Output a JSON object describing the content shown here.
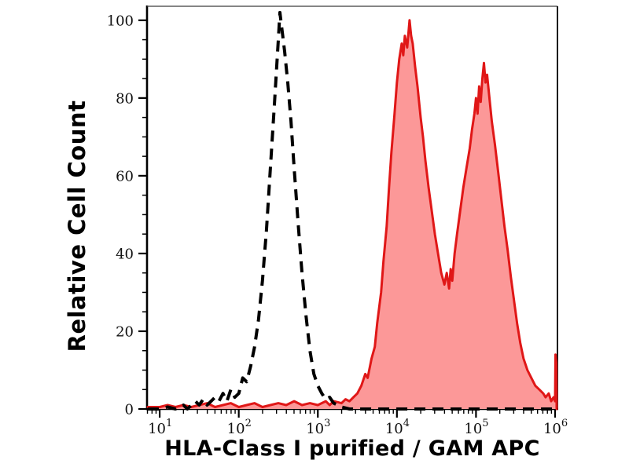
{
  "chart_data": {
    "type": "area",
    "title": "",
    "xlabel": "HLA-Class I purified / GAM APC",
    "ylabel": "Relative Cell Count",
    "x_scale": "log10",
    "x_range_log": [
      0.84,
      6.03
    ],
    "ylim": [
      0,
      103.6
    ],
    "y_ticks": [
      0,
      20,
      40,
      60,
      80,
      100
    ],
    "y_minor_step": 5,
    "x_decades": [
      1,
      2,
      3,
      4,
      5,
      6
    ],
    "grid": false,
    "legend": "none",
    "colors": {
      "sample_line": "#e01717",
      "sample_fill": "#fc9898",
      "control_line": "#000000",
      "axis": "#000000",
      "background": "#ffffff"
    },
    "series": [
      {
        "name": "isotype-control",
        "style": "dashed",
        "peak": {
          "x_log": 2.52,
          "y": 102
        },
        "points": [
          [
            0.85,
            0
          ],
          [
            1.0,
            0
          ],
          [
            1.1,
            0.5
          ],
          [
            1.2,
            0
          ],
          [
            1.3,
            1
          ],
          [
            1.35,
            0
          ],
          [
            1.45,
            2
          ],
          [
            1.5,
            1
          ],
          [
            1.55,
            2.5
          ],
          [
            1.6,
            1
          ],
          [
            1.65,
            2
          ],
          [
            1.7,
            3
          ],
          [
            1.75,
            2
          ],
          [
            1.8,
            4
          ],
          [
            1.85,
            2
          ],
          [
            1.9,
            5
          ],
          [
            1.95,
            3
          ],
          [
            2.0,
            4
          ],
          [
            2.05,
            8
          ],
          [
            2.1,
            7
          ],
          [
            2.15,
            11
          ],
          [
            2.2,
            16
          ],
          [
            2.25,
            23
          ],
          [
            2.3,
            33
          ],
          [
            2.35,
            46
          ],
          [
            2.4,
            62
          ],
          [
            2.45,
            78
          ],
          [
            2.48,
            88
          ],
          [
            2.5,
            95
          ],
          [
            2.52,
            102
          ],
          [
            2.55,
            97
          ],
          [
            2.58,
            92
          ],
          [
            2.62,
            84
          ],
          [
            2.66,
            74
          ],
          [
            2.7,
            62
          ],
          [
            2.75,
            48
          ],
          [
            2.8,
            35
          ],
          [
            2.85,
            24
          ],
          [
            2.9,
            15
          ],
          [
            2.95,
            9
          ],
          [
            3.0,
            6
          ],
          [
            3.05,
            4
          ],
          [
            3.1,
            2.5
          ],
          [
            3.15,
            3
          ],
          [
            3.2,
            1.5
          ],
          [
            3.25,
            1
          ],
          [
            3.3,
            0.5
          ],
          [
            3.4,
            0
          ],
          [
            3.6,
            0
          ],
          [
            3.8,
            0
          ],
          [
            4.0,
            0
          ],
          [
            4.2,
            0
          ],
          [
            4.4,
            0
          ],
          [
            4.6,
            0
          ],
          [
            4.8,
            0
          ],
          [
            5.0,
            0
          ],
          [
            5.2,
            0
          ],
          [
            5.4,
            0
          ],
          [
            5.6,
            0
          ],
          [
            5.8,
            0
          ],
          [
            6.0,
            0
          ],
          [
            6.03,
            0
          ]
        ]
      },
      {
        "name": "hla-class-i-sample",
        "style": "filled",
        "peaks": [
          {
            "x_log": 4.16,
            "y": 100
          },
          {
            "x_log": 5.1,
            "y": 89
          }
        ],
        "valley": {
          "x_log": 4.62,
          "y": 31
        },
        "points": [
          [
            0.85,
            0.5
          ],
          [
            1.0,
            0.5
          ],
          [
            1.1,
            1
          ],
          [
            1.2,
            0.5
          ],
          [
            1.3,
            1
          ],
          [
            1.4,
            0.5
          ],
          [
            1.5,
            1
          ],
          [
            1.6,
            1.5
          ],
          [
            1.7,
            0.5
          ],
          [
            1.8,
            1
          ],
          [
            1.9,
            1.5
          ],
          [
            2.0,
            0.5
          ],
          [
            2.1,
            1
          ],
          [
            2.2,
            1.5
          ],
          [
            2.3,
            0.5
          ],
          [
            2.4,
            1
          ],
          [
            2.5,
            1.5
          ],
          [
            2.6,
            1
          ],
          [
            2.7,
            2
          ],
          [
            2.8,
            1
          ],
          [
            2.9,
            1.5
          ],
          [
            3.0,
            1
          ],
          [
            3.1,
            2
          ],
          [
            3.15,
            1
          ],
          [
            3.2,
            2
          ],
          [
            3.3,
            1.5
          ],
          [
            3.35,
            2.5
          ],
          [
            3.4,
            2
          ],
          [
            3.45,
            3
          ],
          [
            3.5,
            4
          ],
          [
            3.55,
            6
          ],
          [
            3.6,
            9
          ],
          [
            3.63,
            8
          ],
          [
            3.68,
            13
          ],
          [
            3.72,
            16
          ],
          [
            3.75,
            22
          ],
          [
            3.8,
            30
          ],
          [
            3.83,
            38
          ],
          [
            3.87,
            47
          ],
          [
            3.9,
            57
          ],
          [
            3.93,
            66
          ],
          [
            3.97,
            76
          ],
          [
            4.0,
            84
          ],
          [
            4.03,
            90
          ],
          [
            4.06,
            94
          ],
          [
            4.08,
            91
          ],
          [
            4.1,
            96
          ],
          [
            4.13,
            93
          ],
          [
            4.16,
            100
          ],
          [
            4.18,
            96
          ],
          [
            4.2,
            94
          ],
          [
            4.23,
            88
          ],
          [
            4.26,
            83
          ],
          [
            4.3,
            75
          ],
          [
            4.33,
            70
          ],
          [
            4.36,
            64
          ],
          [
            4.4,
            57
          ],
          [
            4.44,
            51
          ],
          [
            4.48,
            45
          ],
          [
            4.52,
            40
          ],
          [
            4.56,
            35
          ],
          [
            4.6,
            32
          ],
          [
            4.63,
            35
          ],
          [
            4.66,
            31
          ],
          [
            4.68,
            36
          ],
          [
            4.7,
            33
          ],
          [
            4.73,
            40
          ],
          [
            4.76,
            45
          ],
          [
            4.8,
            51
          ],
          [
            4.84,
            57
          ],
          [
            4.88,
            62
          ],
          [
            4.92,
            67
          ],
          [
            4.95,
            72
          ],
          [
            4.98,
            76
          ],
          [
            5.0,
            80
          ],
          [
            5.02,
            76
          ],
          [
            5.04,
            83
          ],
          [
            5.06,
            79
          ],
          [
            5.08,
            85
          ],
          [
            5.1,
            89
          ],
          [
            5.12,
            84
          ],
          [
            5.14,
            86
          ],
          [
            5.16,
            82
          ],
          [
            5.18,
            78
          ],
          [
            5.2,
            74
          ],
          [
            5.24,
            68
          ],
          [
            5.28,
            61
          ],
          [
            5.32,
            54
          ],
          [
            5.36,
            47
          ],
          [
            5.4,
            41
          ],
          [
            5.44,
            34
          ],
          [
            5.48,
            28
          ],
          [
            5.52,
            22
          ],
          [
            5.56,
            17
          ],
          [
            5.6,
            13
          ],
          [
            5.65,
            10
          ],
          [
            5.7,
            8
          ],
          [
            5.75,
            6
          ],
          [
            5.8,
            5
          ],
          [
            5.85,
            4
          ],
          [
            5.88,
            3
          ],
          [
            5.92,
            4
          ],
          [
            5.95,
            2
          ],
          [
            5.98,
            3
          ],
          [
            6.0,
            2
          ],
          [
            6.005,
            14
          ],
          [
            6.015,
            12
          ],
          [
            6.02,
            0
          ]
        ]
      }
    ]
  }
}
